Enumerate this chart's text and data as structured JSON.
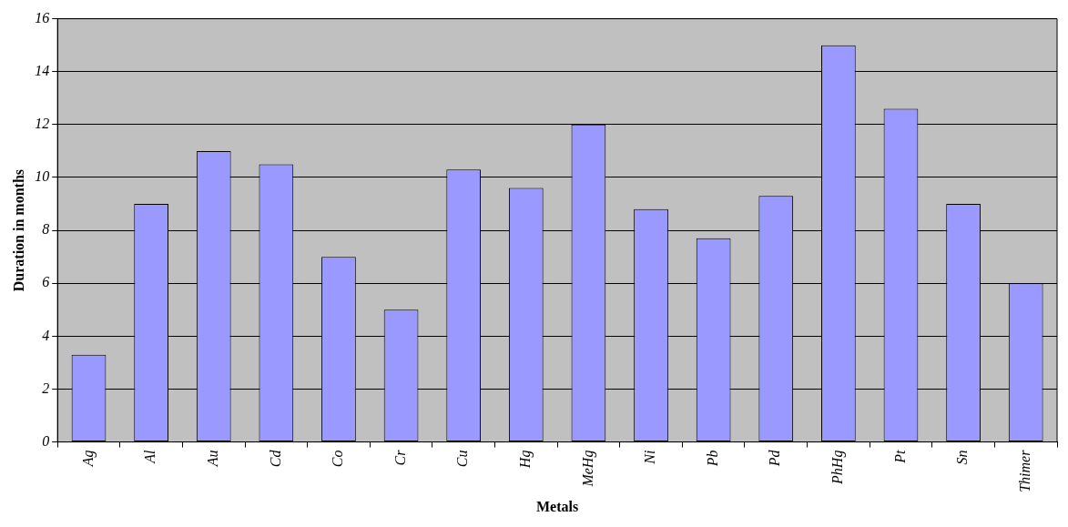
{
  "chart_data": {
    "type": "bar",
    "xlabel": "Metals",
    "ylabel": "Duration in months",
    "categories": [
      "Ag",
      "Al",
      "Au",
      "Cd",
      "Co",
      "Cr",
      "Cu",
      "Hg",
      "MeHg",
      "Ni",
      "Pb",
      "Pd",
      "PhHg",
      "Pt",
      "Sn",
      "Thimer"
    ],
    "values": [
      3.3,
      9,
      11,
      10.5,
      7,
      5,
      10.3,
      9.6,
      12,
      8.8,
      7.7,
      9.3,
      15,
      12.6,
      9,
      6
    ],
    "color": "#9999ff",
    "ylim": [
      0,
      16
    ],
    "yticks": [
      0,
      2,
      4,
      6,
      8,
      10,
      12,
      14,
      16
    ],
    "grid": "y",
    "legend": false
  }
}
